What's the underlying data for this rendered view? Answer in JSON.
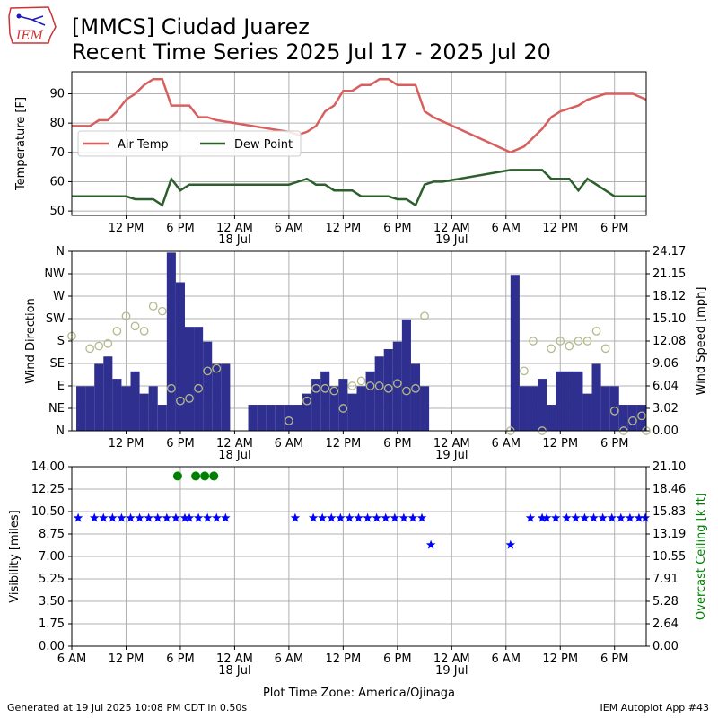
{
  "header": {
    "title_line1": "[MMCS] Ciudad Juarez",
    "title_line2": "Recent Time Series 2025 Jul 17 - 2025 Jul 20",
    "logo_text": "IEM"
  },
  "footer": {
    "generated": "Generated at 19 Jul 2025 10:08 PM CDT in 0.50s",
    "app": "IEM Autoplot App #43"
  },
  "x_axis": {
    "label": "Plot Time Zone: America/Ojinaga",
    "range_hours": [
      0,
      63.5
    ],
    "ticks": [
      {
        "h": 0,
        "label": "6 AM",
        "first_panel_only_bottom": true
      },
      {
        "h": 6,
        "label": "12 PM"
      },
      {
        "h": 12,
        "label": "6 PM"
      },
      {
        "h": 18,
        "label": "12 AM",
        "sub": "18 Jul"
      },
      {
        "h": 24,
        "label": "6 AM"
      },
      {
        "h": 30,
        "label": "12 PM"
      },
      {
        "h": 36,
        "label": "6 PM"
      },
      {
        "h": 42,
        "label": "12 AM",
        "sub": "19 Jul"
      },
      {
        "h": 48,
        "label": "6 AM"
      },
      {
        "h": 54,
        "label": "12 PM"
      },
      {
        "h": 60,
        "label": "6 PM"
      }
    ]
  },
  "chart_data": [
    {
      "type": "line",
      "ylabel": "Temperature [F]",
      "ylim": [
        48.5,
        97.5
      ],
      "yticks": [
        50,
        60,
        70,
        80,
        90
      ],
      "grid": true,
      "legend": {
        "placement": "center-left",
        "entries": [
          "Air Temp",
          "Dew Point"
        ]
      },
      "series": [
        {
          "name": "Air Temp",
          "color": "#d95f5f",
          "x": [
            0,
            1,
            2,
            3,
            4,
            5,
            6,
            7,
            8,
            9,
            10,
            11,
            12,
            13,
            14,
            15,
            16,
            18,
            22,
            24,
            25,
            26,
            27,
            28,
            29,
            30,
            31,
            32,
            33,
            34,
            35,
            36,
            37,
            38,
            39,
            40,
            48.5,
            50,
            52,
            53,
            54,
            56,
            57,
            59,
            60,
            61,
            62,
            63.5
          ],
          "y": [
            79,
            79,
            79,
            81,
            81,
            84,
            88,
            90,
            93,
            95,
            95,
            86,
            86,
            86,
            82,
            82,
            81,
            80,
            78,
            77,
            76,
            77,
            79,
            84,
            86,
            91,
            91,
            93,
            93,
            95,
            95,
            93,
            93,
            93,
            84,
            82,
            70,
            72,
            78,
            82,
            84,
            86,
            88,
            90,
            90,
            90,
            90,
            88
          ]
        },
        {
          "name": "Dew Point",
          "color": "#2d5f2d",
          "x": [
            0,
            1,
            2,
            3,
            4,
            5,
            6,
            7,
            8,
            9,
            10,
            11,
            12,
            13,
            16,
            20,
            24,
            25,
            26,
            27,
            28,
            29,
            30,
            31,
            32,
            33,
            34,
            35,
            36,
            37,
            38,
            39,
            40,
            41,
            48.5,
            51,
            52,
            53,
            54,
            55,
            56,
            57,
            58,
            59,
            60,
            61,
            62,
            63.5
          ],
          "y": [
            55,
            55,
            55,
            55,
            55,
            55,
            55,
            54,
            54,
            54,
            52,
            61,
            57,
            59,
            59,
            59,
            59,
            60,
            61,
            59,
            59,
            57,
            57,
            57,
            55,
            55,
            55,
            55,
            54,
            54,
            52,
            59,
            60,
            60,
            64,
            64,
            64,
            61,
            61,
            61,
            57,
            61,
            59,
            57,
            55,
            55,
            55,
            55
          ]
        }
      ]
    },
    {
      "type": "bar",
      "ylabel": "Wind Direction",
      "y2label": "Wind Speed [mph]",
      "direction_ticks": [
        "N",
        "NE",
        "E",
        "SE",
        "S",
        "SW",
        "W",
        "NW",
        "N"
      ],
      "direction_range": [
        0,
        360
      ],
      "speed_ticks": [
        "0.00",
        "3.02",
        "6.04",
        "9.06",
        "12.08",
        "15.10",
        "18.12",
        "21.15",
        "24.17"
      ],
      "speed_range": [
        0,
        24.17
      ],
      "bar_color": "#2e2f8e",
      "marker_color": "#b5b98a",
      "grid": true,
      "speed_series": {
        "name": "Wind Speed",
        "x": [
          1,
          2,
          3,
          4,
          5,
          6,
          7,
          8,
          9,
          10,
          11,
          12,
          13,
          14,
          15,
          16,
          17,
          20,
          21,
          22,
          23,
          24,
          25,
          26,
          27,
          28,
          29,
          30,
          31,
          32,
          33,
          34,
          35,
          36,
          37,
          38,
          39,
          49,
          50,
          51,
          52,
          53,
          54,
          55,
          56,
          57,
          58,
          59,
          60,
          61,
          62,
          63
        ],
        "y": [
          6,
          6,
          9,
          10,
          7,
          6,
          8,
          5,
          6,
          3.5,
          24,
          20,
          14,
          14,
          12,
          9,
          9,
          3.5,
          3.5,
          3.5,
          3.5,
          3.5,
          3.5,
          5,
          7,
          8,
          6,
          7,
          5,
          6,
          8,
          10,
          11,
          12,
          15,
          9,
          6,
          21,
          6,
          6,
          7,
          3.5,
          8,
          8,
          8,
          5,
          9,
          6,
          6,
          3.5,
          3.5,
          3.5
        ]
      },
      "direction_series": {
        "name": "Wind Direction",
        "x": [
          0,
          2,
          3,
          4,
          5,
          6,
          7,
          8,
          9,
          10,
          11,
          12,
          13,
          14,
          15,
          16,
          24,
          26,
          27,
          28,
          29,
          30,
          31,
          32,
          33,
          34,
          35,
          36,
          37,
          38,
          39,
          48.5,
          50,
          51,
          52,
          53,
          54,
          55,
          56,
          57,
          58,
          59,
          60,
          61,
          62,
          63,
          63.5
        ],
        "y": [
          190,
          165,
          170,
          175,
          200,
          230,
          210,
          200,
          250,
          240,
          85,
          60,
          65,
          85,
          120,
          125,
          20,
          60,
          85,
          85,
          80,
          45,
          90,
          100,
          90,
          90,
          85,
          95,
          80,
          85,
          230,
          0,
          120,
          180,
          0,
          165,
          180,
          170,
          180,
          180,
          200,
          165,
          40,
          0,
          20,
          30,
          0
        ]
      }
    },
    {
      "type": "scatter",
      "ylabel": "Visibility [miles]",
      "y2label": "Overcast Ceiling [k ft]",
      "vis_ticks": [
        "0.00",
        "1.75",
        "3.50",
        "5.25",
        "7.00",
        "8.75",
        "10.50",
        "12.25",
        "14.00"
      ],
      "vis_range": [
        0,
        14
      ],
      "ceil_ticks": [
        "0.00",
        "2.64",
        "5.28",
        "7.91",
        "10.55",
        "13.19",
        "15.83",
        "18.46",
        "21.10"
      ],
      "ceil_range": [
        0,
        21.1
      ],
      "grid": true,
      "visibility": {
        "name": "Visibility",
        "color": "#0000ff",
        "x": [
          0.7,
          2.5,
          3.5,
          4.5,
          5.5,
          6.5,
          7.5,
          8.5,
          9.5,
          10.5,
          11.5,
          12.5,
          13,
          14,
          15,
          16,
          17,
          24.7,
          26.7,
          27.7,
          28.7,
          29.7,
          30.7,
          31.7,
          32.7,
          33.7,
          34.7,
          35.7,
          36.7,
          37.7,
          38.7,
          39.7,
          48.5,
          50.7,
          52,
          52.5,
          53.5,
          54.7,
          55.7,
          56.7,
          57.7,
          58.7,
          59.7,
          60.7,
          61.7,
          62.7,
          63.4
        ],
        "y": [
          10,
          10,
          10,
          10,
          10,
          10,
          10,
          10,
          10,
          10,
          10,
          10,
          10,
          10,
          10,
          10,
          10,
          10,
          10,
          10,
          10,
          10,
          10,
          10,
          10,
          10,
          10,
          10,
          10,
          10,
          10,
          7.9,
          7.9,
          10,
          10,
          10,
          10,
          10,
          10,
          10,
          10,
          10,
          10,
          10,
          10,
          10,
          10
        ]
      },
      "ceiling": {
        "name": "Overcast Ceiling",
        "color": "#008000",
        "x": [
          11.7,
          13.7,
          14.7,
          15.7
        ],
        "y": [
          20,
          20,
          20,
          20
        ]
      }
    }
  ]
}
